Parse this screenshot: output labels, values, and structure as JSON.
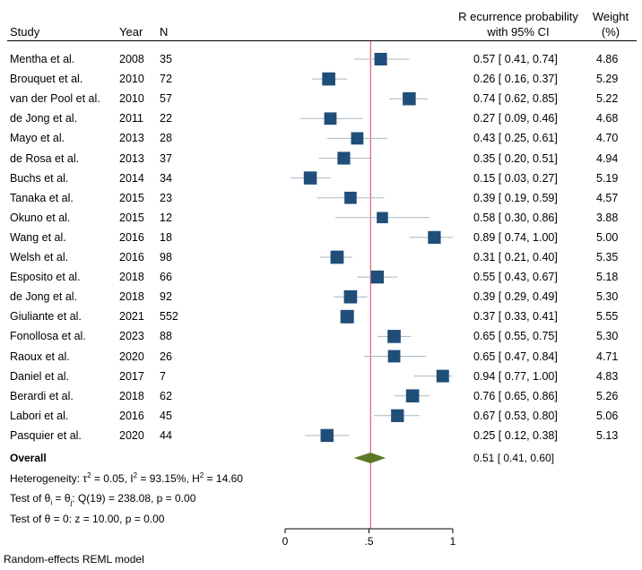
{
  "header": {
    "study": "Study",
    "year": "Year",
    "n": "N",
    "ci_line1": "R ecurrence probability",
    "ci_line2": "with 95% CI",
    "weight_line1": "Weight",
    "weight_line2": "(%)"
  },
  "rows": [
    {
      "study": "Mentha et al.",
      "year": "2008",
      "n": "35",
      "ci": "0.57 [ 0.41, 0.74]",
      "weight": "4.86"
    },
    {
      "study": "Brouquet et al.",
      "year": "2010",
      "n": "72",
      "ci": "0.26 [ 0.16, 0.37]",
      "weight": "5.29"
    },
    {
      "study": "van der Pool et al.",
      "year": "2010",
      "n": "57",
      "ci": "0.74 [ 0.62, 0.85]",
      "weight": "5.22"
    },
    {
      "study": "de Jong et al.",
      "year": "2011",
      "n": "22",
      "ci": "0.27 [ 0.09, 0.46]",
      "weight": "4.68"
    },
    {
      "study": "Mayo et al.",
      "year": "2013",
      "n": "28",
      "ci": "0.43 [ 0.25, 0.61]",
      "weight": "4.70"
    },
    {
      "study": "de Rosa et al.",
      "year": "2013",
      "n": "37",
      "ci": "0.35 [ 0.20, 0.51]",
      "weight": "4.94"
    },
    {
      "study": "Buchs et al.",
      "year": "2014",
      "n": "34",
      "ci": "0.15 [ 0.03, 0.27]",
      "weight": "5.19"
    },
    {
      "study": "Tanaka et al.",
      "year": "2015",
      "n": "23",
      "ci": "0.39 [ 0.19, 0.59]",
      "weight": "4.57"
    },
    {
      "study": "Okuno et al.",
      "year": "2015",
      "n": "12",
      "ci": "0.58 [ 0.30, 0.86]",
      "weight": "3.88"
    },
    {
      "study": "Wang et al.",
      "year": "2016",
      "n": "18",
      "ci": "0.89 [ 0.74, 1.00]",
      "weight": "5.00"
    },
    {
      "study": "Welsh et al.",
      "year": "2016",
      "n": "98",
      "ci": "0.31 [ 0.21, 0.40]",
      "weight": "5.35"
    },
    {
      "study": "Esposito et al.",
      "year": "2018",
      "n": "66",
      "ci": "0.55 [ 0.43, 0.67]",
      "weight": "5.18"
    },
    {
      "study": "de Jong et al.",
      "year": "2018",
      "n": "92",
      "ci": "0.39 [ 0.29, 0.49]",
      "weight": "5.30"
    },
    {
      "study": "Giuliante et al.",
      "year": "2021",
      "n": "552",
      "ci": "0.37 [ 0.33, 0.41]",
      "weight": "5.55"
    },
    {
      "study": "Fonollosa et al.",
      "year": "2023",
      "n": "88",
      "ci": "0.65 [ 0.55, 0.75]",
      "weight": "5.30"
    },
    {
      "study": "Raoux et al.",
      "year": "2020",
      "n": "26",
      "ci": "0.65 [ 0.47, 0.84]",
      "weight": "4.71"
    },
    {
      "study": "Daniel et al.",
      "year": "2017",
      "n": "7",
      "ci": "0.94 [ 0.77, 1.00]",
      "weight": "4.83"
    },
    {
      "study": "Berardi et al.",
      "year": "2018",
      "n": "62",
      "ci": "0.76 [ 0.65, 0.86]",
      "weight": "5.26"
    },
    {
      "study": "Labori et al.",
      "year": "2016",
      "n": "45",
      "ci": "0.67 [ 0.53, 0.80]",
      "weight": "5.06"
    },
    {
      "study": "Pasquier et al.",
      "year": "2020",
      "n": "44",
      "ci": "0.25 [ 0.12, 0.38]",
      "weight": "5.13"
    }
  ],
  "overall": {
    "label": "Overall",
    "ci": "0.51 [ 0.41, 0.60]"
  },
  "stats": {
    "heterogeneity_prefix": "Heterogeneity: τ",
    "heterogeneity_sup1": "2",
    "heterogeneity_mid1": " = 0.05, I",
    "heterogeneity_sup2": "2",
    "heterogeneity_mid2": " = 93.15%, H",
    "heterogeneity_sup3": "2",
    "heterogeneity_end": " = 14.60",
    "test_theta_prefix": "Test of θ",
    "test_theta_sub1": "i",
    "test_theta_mid": " = θ",
    "test_theta_sub2": "j",
    "test_theta_end": ": Q(19) = 238.08, p = 0.00",
    "test_zero": "Test of θ = 0: z = 10.00, p = 0.00"
  },
  "footer": "Random-effects REML model",
  "chart_data": {
    "type": "forest",
    "xlim": [
      0,
      1
    ],
    "x_ticks": [
      0,
      0.5,
      1
    ],
    "x_tick_labels": [
      "0",
      ".5",
      "1"
    ],
    "reference_line": 0.51,
    "colors": {
      "square": "#1f4e79",
      "ci_line": "#aab4c2",
      "diamond": "#5a7a2a",
      "reference": "#e06b84"
    },
    "estimates": [
      0.57,
      0.26,
      0.74,
      0.27,
      0.43,
      0.35,
      0.15,
      0.39,
      0.58,
      0.89,
      0.31,
      0.55,
      0.39,
      0.37,
      0.65,
      0.65,
      0.94,
      0.76,
      0.67,
      0.25
    ],
    "lower": [
      0.41,
      0.16,
      0.62,
      0.09,
      0.25,
      0.2,
      0.03,
      0.19,
      0.3,
      0.74,
      0.21,
      0.43,
      0.29,
      0.33,
      0.55,
      0.47,
      0.77,
      0.65,
      0.53,
      0.12
    ],
    "upper": [
      0.74,
      0.37,
      0.85,
      0.46,
      0.61,
      0.51,
      0.27,
      0.59,
      0.86,
      1.0,
      0.4,
      0.67,
      0.49,
      0.41,
      0.75,
      0.84,
      1.0,
      0.86,
      0.8,
      0.38
    ],
    "weights": [
      4.86,
      5.29,
      5.22,
      4.68,
      4.7,
      4.94,
      5.19,
      4.57,
      3.88,
      5.0,
      5.35,
      5.18,
      5.3,
      5.55,
      5.3,
      4.71,
      4.83,
      5.26,
      5.06,
      5.13
    ],
    "overall": {
      "estimate": 0.51,
      "lower": 0.41,
      "upper": 0.6
    }
  }
}
